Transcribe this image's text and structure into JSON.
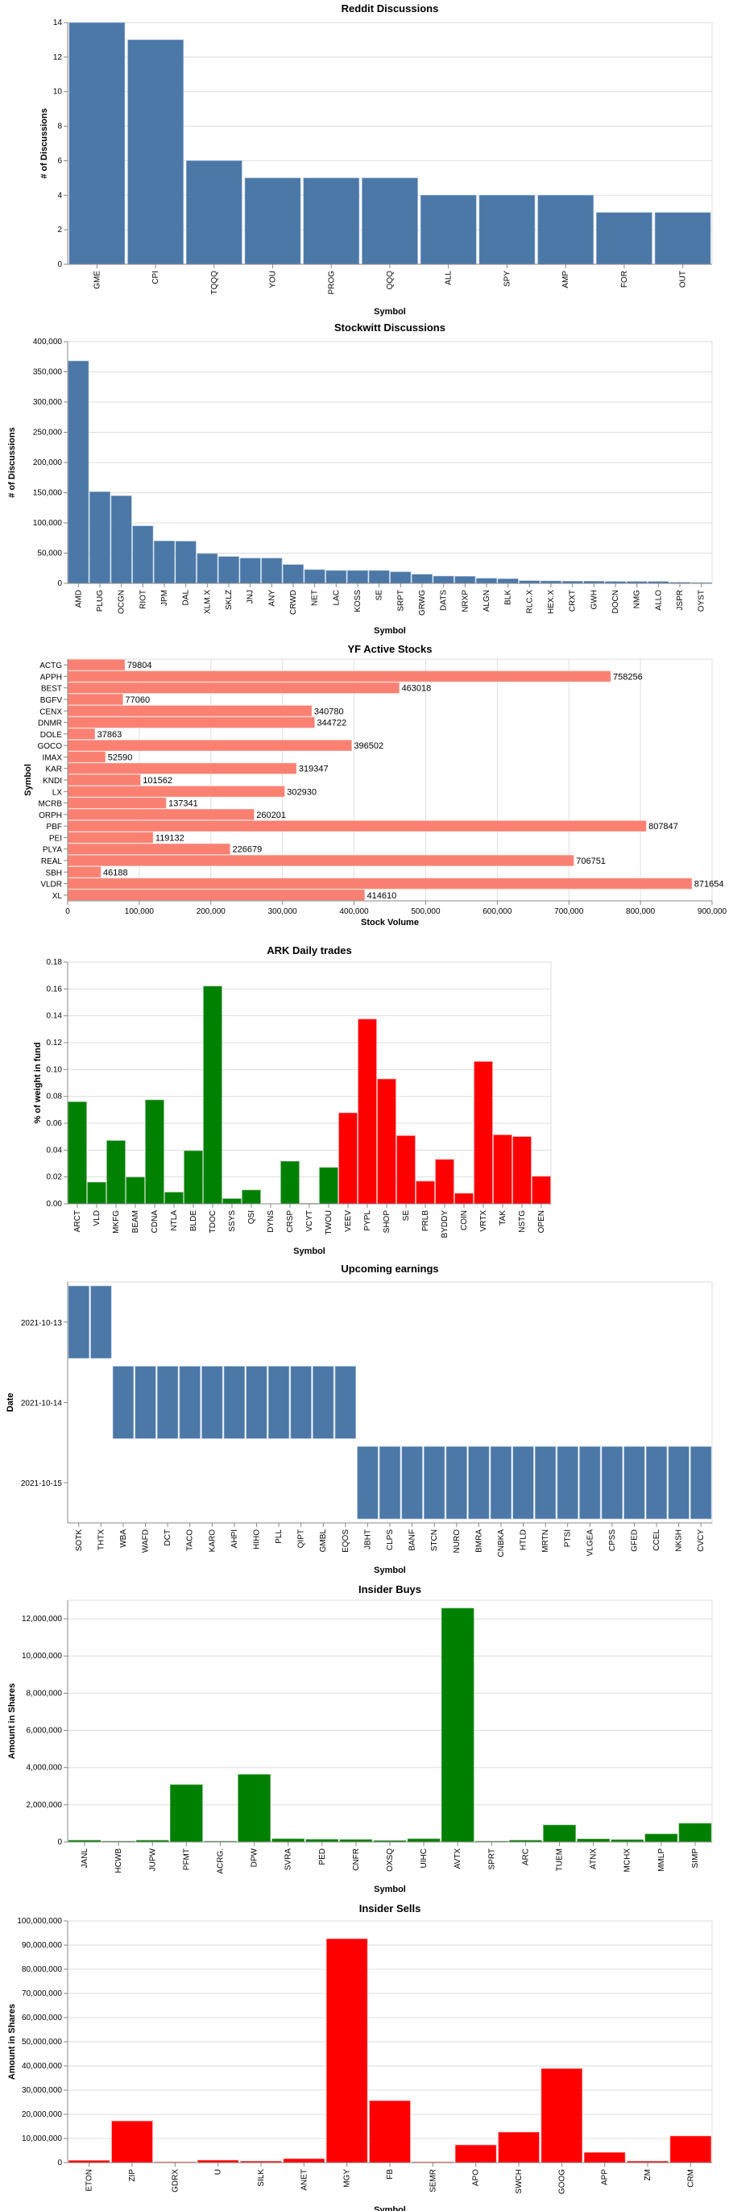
{
  "chart_data": [
    {
      "id": "reddit",
      "type": "bar",
      "orientation": "vertical",
      "title": "Reddit Discussions",
      "xlabel": "Symbol",
      "ylabel": "# of Discussions",
      "ylim": [
        0,
        14
      ],
      "yticks": [
        0,
        2,
        4,
        6,
        8,
        10,
        12,
        14
      ],
      "ytick_format": "plain",
      "grid": true,
      "color": "#4c78a8",
      "categories": [
        "GME",
        "CPI",
        "TQQQ",
        "YOU",
        "PROG",
        "QQQ",
        "ALL",
        "SPY",
        "AMP",
        "FOR",
        "OUT"
      ],
      "values": [
        14,
        13,
        6,
        5,
        5,
        5,
        4,
        4,
        4,
        3,
        3
      ]
    },
    {
      "id": "stockwitt",
      "type": "bar",
      "orientation": "vertical",
      "title": "Stockwitt Discussions",
      "xlabel": "Symbol",
      "ylabel": "# of Discussions",
      "ylim": [
        0,
        400000
      ],
      "yticks": [
        0,
        50000,
        100000,
        150000,
        200000,
        250000,
        300000,
        350000,
        400000
      ],
      "ytick_format": "comma",
      "grid": true,
      "color": "#4c78a8",
      "categories": [
        "AMD",
        "PLUG",
        "OCGN",
        "RIOT",
        "JPM",
        "DAL",
        "XLM.X",
        "SKLZ",
        "JNJ",
        "ANY",
        "CRWD",
        "NET",
        "LAC",
        "KOSS",
        "SE",
        "SRPT",
        "GRWG",
        "DATS",
        "NRXP",
        "ALGN",
        "BLK",
        "RLC.X",
        "HEX.X",
        "CRXT",
        "GWH",
        "DOCN",
        "NMG",
        "ALLO",
        "JSPR",
        "OYST"
      ],
      "values": [
        368000,
        151600,
        144900,
        95100,
        70200,
        69800,
        49300,
        44400,
        41800,
        41800,
        31100,
        22700,
        21300,
        21300,
        21300,
        19100,
        15100,
        12000,
        11600,
        8400,
        7600,
        4400,
        4000,
        3600,
        3600,
        3100,
        3100,
        3100,
        1800,
        1300
      ]
    },
    {
      "id": "yf-active",
      "type": "bar",
      "orientation": "horizontal",
      "title": "YF Active Stocks",
      "xlabel": "Stock Volume",
      "ylabel": "Symbol",
      "xlim": [
        0,
        900000
      ],
      "xticks": [
        0,
        100000,
        200000,
        300000,
        400000,
        500000,
        600000,
        700000,
        800000,
        900000
      ],
      "xtick_format": "comma",
      "grid": true,
      "color": "#fa8072",
      "show_data_labels": true,
      "categories": [
        "ACTG",
        "APPH",
        "BEST",
        "BGFV",
        "CENX",
        "DNMR",
        "DOLE",
        "GOCO",
        "IMAX",
        "KAR",
        "KNDI",
        "LX",
        "MCRB",
        "ORPH",
        "PBF",
        "PEI",
        "PLYA",
        "REAL",
        "SBH",
        "VLDR",
        "XL"
      ],
      "values": [
        79804,
        758256,
        463018,
        77060,
        340780,
        344722,
        37863,
        396502,
        52590,
        319347,
        101562,
        302930,
        137341,
        260201,
        807847,
        119132,
        226679,
        706751,
        46188,
        871654,
        414610
      ]
    },
    {
      "id": "ark",
      "type": "bar",
      "orientation": "vertical",
      "title": "ARK Daily trades",
      "xlabel": "Symbol",
      "ylabel": "% of weight in fund",
      "ylim": [
        0,
        0.18
      ],
      "yticks": [
        0,
        0.02,
        0.04,
        0.06,
        0.08,
        0.1,
        0.12,
        0.14,
        0.16,
        0.18
      ],
      "ytick_format": "fixed2",
      "grid": true,
      "colors": {
        "Buy": "#008000",
        "Sell": "#ff0000"
      },
      "categories": [
        "ARCT",
        "VLD",
        "MKFG",
        "BEAM",
        "CDNA",
        "NTLA",
        "BLDE",
        "TDOC",
        "SSYS",
        "QSI",
        "DYNS",
        "CRSP",
        "VCYT",
        "TWOU",
        "VEEV",
        "PYPL",
        "SHOP",
        "SE",
        "PRLB",
        "BYDDY",
        "COIN",
        "VRTX",
        "TAK",
        "NSTG",
        "OPEN"
      ],
      "values": [
        0.0759,
        0.016,
        0.047,
        0.0198,
        0.0773,
        0.0086,
        0.0394,
        0.162,
        0.0038,
        0.0102,
        0.0,
        0.0316,
        0.0003,
        0.027,
        0.0677,
        0.1375,
        0.0929,
        0.0507,
        0.0168,
        0.033,
        0.0078,
        0.1059,
        0.0513,
        0.05,
        0.0204
      ],
      "direction": [
        "Buy",
        "Buy",
        "Buy",
        "Buy",
        "Buy",
        "Buy",
        "Buy",
        "Buy",
        "Buy",
        "Buy",
        "Buy",
        "Buy",
        "Buy",
        "Buy",
        "Sell",
        "Sell",
        "Sell",
        "Sell",
        "Sell",
        "Sell",
        "Sell",
        "Sell",
        "Sell",
        "Sell",
        "Sell"
      ]
    },
    {
      "id": "earnings",
      "type": "heatmap",
      "title": "Upcoming earnings",
      "xlabel": "Symbol",
      "ylabel": "Date",
      "dates": [
        "2021-10-13",
        "2021-10-14",
        "2021-10-15"
      ],
      "color": "#4c78a8",
      "categories": [
        "SOTK",
        "THTX",
        "WBA",
        "WAFD",
        "DCT",
        "TACO",
        "KARO",
        "AHPI",
        "HIHO",
        "PLL",
        "QIPT",
        "GMBL",
        "EQOS",
        "JBHT",
        "CLPS",
        "BANF",
        "STCN",
        "NURO",
        "BMRA",
        "CNBKA",
        "HTLD",
        "MRTN",
        "PTSI",
        "VLGEA",
        "CPSS",
        "GFED",
        "CCEL",
        "NKSH",
        "CVCY"
      ],
      "date_of": [
        "2021-10-13",
        "2021-10-13",
        "2021-10-14",
        "2021-10-14",
        "2021-10-14",
        "2021-10-14",
        "2021-10-14",
        "2021-10-14",
        "2021-10-14",
        "2021-10-14",
        "2021-10-14",
        "2021-10-14",
        "2021-10-14",
        "2021-10-15",
        "2021-10-15",
        "2021-10-15",
        "2021-10-15",
        "2021-10-15",
        "2021-10-15",
        "2021-10-15",
        "2021-10-15",
        "2021-10-15",
        "2021-10-15",
        "2021-10-15",
        "2021-10-15",
        "2021-10-15",
        "2021-10-15",
        "2021-10-15",
        "2021-10-15"
      ]
    },
    {
      "id": "insider-buys",
      "type": "bar",
      "orientation": "vertical",
      "title": "Insider Buys",
      "xlabel": "Symbol",
      "ylabel": "Amount in Shares",
      "ylim": [
        0,
        13000000
      ],
      "yticks": [
        0,
        2000000,
        4000000,
        6000000,
        8000000,
        10000000,
        12000000
      ],
      "ytick_format": "comma",
      "grid": true,
      "color": "#008000",
      "categories": [
        "JANL",
        "HCWB",
        "JUPW",
        "PFMT",
        "ACRG.",
        "DPW",
        "SVRA",
        "PED",
        "CNFR",
        "OXSQ",
        "UIHC",
        "AVTX",
        "SPRT",
        "ARC",
        "TUEM",
        "ATNX",
        "MCHX",
        "MMLP",
        "SIMP"
      ],
      "values": [
        90000,
        40000,
        90000,
        3080000,
        40000,
        3630000,
        170000,
        140000,
        130000,
        70000,
        170000,
        12570000,
        40000,
        90000,
        910000,
        160000,
        120000,
        430000,
        1000000
      ]
    },
    {
      "id": "insider-sells",
      "type": "bar",
      "orientation": "vertical",
      "title": "Insider Sells",
      "xlabel": "Symbol",
      "ylabel": "Amount in Shares",
      "ylim": [
        0,
        100000000
      ],
      "yticks": [
        0,
        10000000,
        20000000,
        30000000,
        40000000,
        50000000,
        60000000,
        70000000,
        80000000,
        90000000,
        100000000
      ],
      "ytick_format": "comma",
      "grid": true,
      "color": "#ff0000",
      "categories": [
        "ETON",
        "ZIP",
        "GDRX",
        "U",
        "SILK",
        "ANET",
        "MGY",
        "FB",
        "SEMR",
        "APO",
        "SWCH",
        "GOOG",
        "APP",
        "ZM",
        "CRM"
      ],
      "values": [
        900000,
        17200000,
        300000,
        1000000,
        600000,
        1600000,
        92600000,
        25600000,
        300000,
        7300000,
        12600000,
        38900000,
        4200000,
        600000,
        11000000
      ]
    }
  ]
}
